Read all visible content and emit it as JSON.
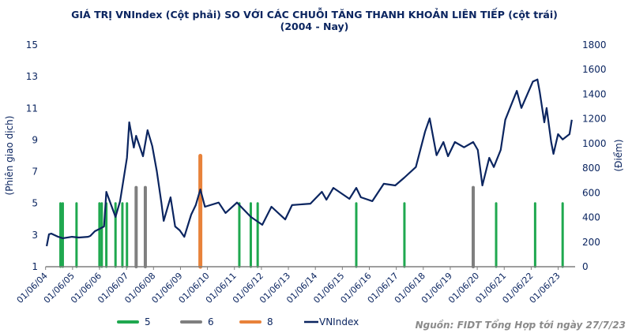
{
  "chart_data": {
    "type": "bar+line",
    "title_line1": "GIÁ TRỊ VNIndex (Cột phải) SO VỚI CÁC CHUỖI TĂNG THANH KHOẢN LIÊN TIẾP (cột trái)",
    "title_line2": "(2004 - Nay)",
    "ylabel_left": "(Phiên giao dịch)",
    "ylabel_right": "(Điểm)",
    "ylim_left": [
      1,
      15
    ],
    "yticks_left": [
      1,
      3,
      5,
      7,
      9,
      11,
      13,
      15
    ],
    "ylim_right": [
      0,
      1800
    ],
    "yticks_right": [
      0,
      200,
      400,
      600,
      800,
      1000,
      1200,
      1400,
      1600,
      1800
    ],
    "xticks": [
      "01/06/04",
      "01/06/05",
      "01/06/06",
      "01/06/07",
      "01/06/08",
      "01/06/09",
      "01/06/10",
      "01/06/11",
      "01/06/12",
      "01/06/13",
      "01/06/14",
      "01/06/15",
      "01/06/16",
      "01/06/17",
      "01/06/18",
      "01/06/19",
      "01/06/20",
      "01/06/21",
      "01/06/22",
      "01/06/23"
    ],
    "grid": false,
    "legend_placement": "bottom",
    "colors": {
      "5": "#1fa84f",
      "6": "#7f7f7f",
      "8": "#e8823a",
      "VNIndex": "#0b2560",
      "text": "#0b2560"
    },
    "bar_series": [
      {
        "name": "5",
        "value": 5,
        "dates": [
          "2004-12",
          "2005-01",
          "2005-07",
          "2006-05",
          "2006-06",
          "2006-08",
          "2006-12",
          "2007-03",
          "2007-05",
          "2011-06",
          "2011-11",
          "2012-02",
          "2015-09",
          "2017-06",
          "2020-10",
          "2022-03",
          "2023-03"
        ]
      },
      {
        "name": "6",
        "value": 6,
        "dates": [
          "2007-09",
          "2008-01",
          "2019-12"
        ]
      },
      {
        "name": "8",
        "value": 8,
        "dates": [
          "2010-01"
        ]
      }
    ],
    "line_series": {
      "name": "VNIndex",
      "points": [
        [
          "2004-06",
          167
        ],
        [
          "2004-07",
          263
        ],
        [
          "2004-08",
          269
        ],
        [
          "2004-11",
          243
        ],
        [
          "2005-01",
          231
        ],
        [
          "2005-05",
          243
        ],
        [
          "2005-08",
          237
        ],
        [
          "2005-12",
          243
        ],
        [
          "2006-01",
          250
        ],
        [
          "2006-03",
          288
        ],
        [
          "2006-05",
          307
        ],
        [
          "2006-07",
          327
        ],
        [
          "2006-08",
          608
        ],
        [
          "2006-12",
          404
        ],
        [
          "2007-02",
          532
        ],
        [
          "2007-05",
          884
        ],
        [
          "2007-06",
          1172
        ],
        [
          "2007-08",
          967
        ],
        [
          "2007-09",
          1063
        ],
        [
          "2007-12",
          897
        ],
        [
          "2008-02",
          1108
        ],
        [
          "2008-04",
          980
        ],
        [
          "2008-06",
          775
        ],
        [
          "2008-08",
          519
        ],
        [
          "2008-09",
          372
        ],
        [
          "2008-12",
          564
        ],
        [
          "2009-02",
          327
        ],
        [
          "2009-04",
          295
        ],
        [
          "2009-06",
          243
        ],
        [
          "2009-09",
          423
        ],
        [
          "2009-11",
          500
        ],
        [
          "2010-01",
          628
        ],
        [
          "2010-03",
          487
        ],
        [
          "2010-09",
          521
        ],
        [
          "2010-12",
          436
        ],
        [
          "2011-05",
          521
        ],
        [
          "2011-11",
          404
        ],
        [
          "2012-04",
          340
        ],
        [
          "2012-08",
          487
        ],
        [
          "2013-02",
          384
        ],
        [
          "2013-05",
          500
        ],
        [
          "2014-01",
          512
        ],
        [
          "2014-06",
          608
        ],
        [
          "2014-08",
          544
        ],
        [
          "2014-11",
          640
        ],
        [
          "2015-06",
          551
        ],
        [
          "2015-09",
          640
        ],
        [
          "2015-11",
          564
        ],
        [
          "2016-04",
          532
        ],
        [
          "2016-09",
          673
        ],
        [
          "2017-02",
          660
        ],
        [
          "2017-06",
          724
        ],
        [
          "2017-11",
          809
        ],
        [
          "2018-03",
          1097
        ],
        [
          "2018-05",
          1204
        ],
        [
          "2018-08",
          905
        ],
        [
          "2018-11",
          1012
        ],
        [
          "2019-01",
          897
        ],
        [
          "2019-04",
          1012
        ],
        [
          "2019-08",
          969
        ],
        [
          "2019-12",
          1012
        ],
        [
          "2020-02",
          948
        ],
        [
          "2020-04",
          660
        ],
        [
          "2020-07",
          884
        ],
        [
          "2020-09",
          809
        ],
        [
          "2020-12",
          948
        ],
        [
          "2021-02",
          1193
        ],
        [
          "2021-07",
          1428
        ],
        [
          "2021-09",
          1289
        ],
        [
          "2022-02",
          1503
        ],
        [
          "2022-04",
          1520
        ],
        [
          "2022-05",
          1418
        ],
        [
          "2022-07",
          1172
        ],
        [
          "2022-08",
          1289
        ],
        [
          "2022-10",
          1012
        ],
        [
          "2022-11",
          916
        ],
        [
          "2023-01",
          1076
        ],
        [
          "2023-03",
          1033
        ],
        [
          "2023-06",
          1076
        ],
        [
          "2023-07",
          1193
        ]
      ]
    },
    "legend": [
      "5",
      "6",
      "8",
      "VNIndex"
    ],
    "source": "Nguồn: FIDT Tổng Hợp tới ngày 27/7/23"
  }
}
